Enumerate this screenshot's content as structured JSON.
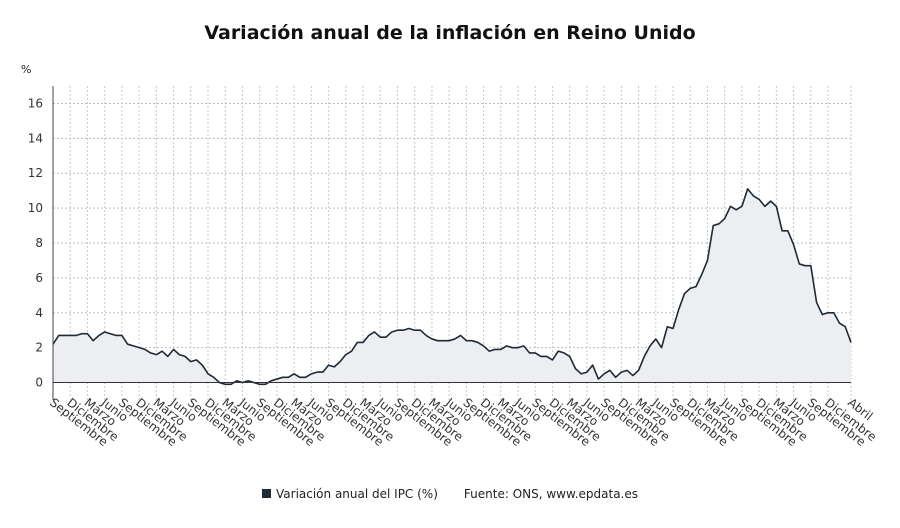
{
  "chart_data": {
    "type": "area",
    "title": "Variación anual de la inflación en Reino Unido",
    "ylabel": "%",
    "ylim": [
      -1,
      17
    ],
    "yticks": [
      0,
      2,
      4,
      6,
      8,
      10,
      12,
      14,
      16
    ],
    "grid": true,
    "series": [
      {
        "name": "Variación anual del IPC (%)",
        "color": "#1f2a36",
        "fill": "#eceef1",
        "values": [
          2.2,
          2.7,
          2.7,
          2.7,
          2.7,
          2.8,
          2.8,
          2.4,
          2.7,
          2.9,
          2.8,
          2.7,
          2.7,
          2.2,
          2.1,
          2.0,
          1.9,
          1.7,
          1.6,
          1.8,
          1.5,
          1.9,
          1.6,
          1.5,
          1.2,
          1.3,
          1.0,
          0.5,
          0.3,
          0.0,
          -0.1,
          -0.1,
          0.1,
          0.0,
          0.1,
          0.0,
          -0.1,
          -0.1,
          0.1,
          0.2,
          0.3,
          0.3,
          0.5,
          0.3,
          0.3,
          0.5,
          0.6,
          0.6,
          1.0,
          0.9,
          1.2,
          1.6,
          1.8,
          2.3,
          2.3,
          2.7,
          2.9,
          2.6,
          2.6,
          2.9,
          3.0,
          3.0,
          3.1,
          3.0,
          3.0,
          2.7,
          2.5,
          2.4,
          2.4,
          2.4,
          2.5,
          2.7,
          2.4,
          2.4,
          2.3,
          2.1,
          1.8,
          1.9,
          1.9,
          2.1,
          2.0,
          2.0,
          2.1,
          1.7,
          1.7,
          1.5,
          1.5,
          1.3,
          1.8,
          1.7,
          1.5,
          0.8,
          0.5,
          0.6,
          1.0,
          0.2,
          0.5,
          0.7,
          0.3,
          0.6,
          0.7,
          0.4,
          0.7,
          1.5,
          2.1,
          2.5,
          2.0,
          3.2,
          3.1,
          4.2,
          5.1,
          5.4,
          5.5,
          6.2,
          7.0,
          9.0,
          9.1,
          9.4,
          10.1,
          9.9,
          10.1,
          11.1,
          10.7,
          10.5,
          10.1,
          10.4,
          10.1,
          8.7,
          8.7,
          7.9,
          6.8,
          6.7,
          6.7,
          4.6,
          3.9,
          4.0,
          4.0,
          3.4,
          3.2,
          2.3
        ]
      }
    ],
    "x_tick_labels": [
      "Septiembre",
      "Diciembre",
      "Marzo",
      "Junio",
      "Septiembre",
      "Diciembre",
      "Marzo",
      "Junio",
      "Septiembre",
      "Diciembre",
      "Marzo",
      "Junio",
      "Septiembre",
      "Diciembre",
      "Marzo",
      "Junio",
      "Septiembre",
      "Diciembre",
      "Marzo",
      "Junio",
      "Septiembre",
      "Diciembre",
      "Marzo",
      "Junio",
      "Septiembre",
      "Diciembre",
      "Marzo",
      "Junio",
      "Septiembre",
      "Diciembre",
      "Marzo",
      "Junio",
      "Septiembre",
      "Diciembre",
      "Marzo",
      "Junio",
      "Septiembre",
      "Diciembre",
      "Marzo",
      "Junio",
      "Septiembre",
      "Diciembre",
      "Marzo",
      "Junio",
      "Septiembre",
      "Diciembre",
      "Abril"
    ],
    "x_tick_month_index": [
      0,
      3,
      6,
      9,
      12,
      15,
      18,
      21,
      24,
      27,
      30,
      33,
      36,
      39,
      42,
      45,
      48,
      51,
      54,
      57,
      60,
      63,
      66,
      69,
      72,
      75,
      78,
      81,
      84,
      87,
      90,
      93,
      96,
      99,
      102,
      105,
      108,
      111,
      114,
      117,
      120,
      123,
      126,
      129,
      132,
      135,
      139
    ]
  },
  "legend": {
    "label": "Variación anual del IPC (%)"
  },
  "source": "Fuente: ONS, www.epdata.es"
}
